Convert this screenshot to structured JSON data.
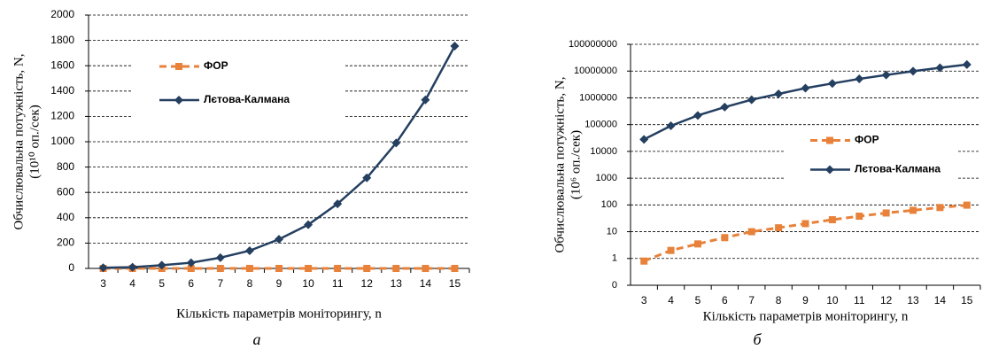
{
  "chart_data": [
    {
      "type": "line",
      "caption": "а",
      "ylabel": [
        "Обчислювальна потужність, N,",
        "(10¹⁰ оп./сек)"
      ],
      "xlabel": "Кількість  параметрів моніторингу,  n",
      "categories": [
        "3",
        "4",
        "5",
        "6",
        "7",
        "8",
        "9",
        "10",
        "11",
        "12",
        "13",
        "14",
        "15"
      ],
      "ylim": [
        0,
        2000
      ],
      "yticks": [
        0,
        200,
        400,
        600,
        800,
        1000,
        1200,
        1400,
        1600,
        1800,
        2000
      ],
      "log_scale": false,
      "grid": true,
      "legend": "upper left",
      "series": [
        {
          "name": "ФОР",
          "color": "#e8823a",
          "dashed": true,
          "marker": "square",
          "values": [
            0,
            0,
            0,
            0,
            0,
            0,
            0,
            0,
            0,
            0,
            0,
            0,
            0
          ]
        },
        {
          "name": "Лєтова-Калмана",
          "color": "#243f60",
          "dashed": false,
          "marker": "diamond",
          "values": [
            5,
            10,
            25,
            45,
            85,
            140,
            230,
            345,
            510,
            715,
            990,
            1330,
            1755
          ]
        }
      ]
    },
    {
      "type": "line",
      "caption": "б",
      "ylabel": [
        "Обчислювальна потужність, N,",
        "(10⁶ оп./сек)"
      ],
      "xlabel": "Кількість  параметрів моніторингу, n",
      "categories": [
        "3",
        "4",
        "5",
        "6",
        "7",
        "8",
        "9",
        "10",
        "11",
        "12",
        "13",
        "14",
        "15"
      ],
      "ylim": [
        0.1,
        100000000
      ],
      "yticks": [
        {
          "value": 0.1,
          "label": "0"
        },
        1,
        10,
        100,
        1000,
        10000,
        100000,
        1000000,
        10000000,
        100000000
      ],
      "log_scale": true,
      "grid": true,
      "legend": "center right",
      "series": [
        {
          "name": "ФОР",
          "color": "#e8823a",
          "dashed": true,
          "marker": "square",
          "values": [
            0.8,
            2,
            3.5,
            6,
            10,
            14,
            20,
            28,
            38,
            50,
            63,
            80,
            98
          ]
        },
        {
          "name": "Лєтова-Калмана",
          "color": "#243f60",
          "dashed": false,
          "marker": "diamond",
          "values": [
            28000,
            90000,
            220000,
            450000,
            850000,
            1400000,
            2300000,
            3450000,
            5100000,
            7150000,
            9900000,
            13300000,
            17550000
          ]
        }
      ]
    }
  ]
}
